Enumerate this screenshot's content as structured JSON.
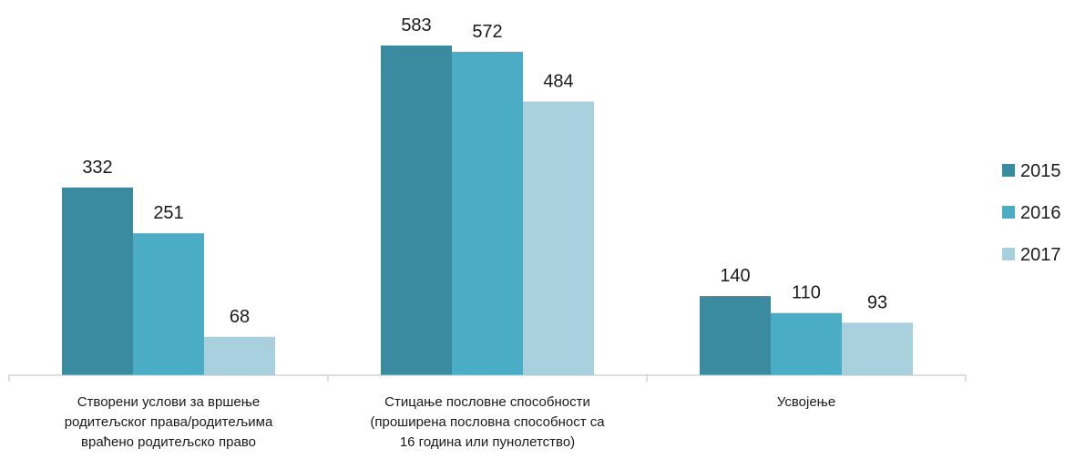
{
  "chart_data": {
    "type": "bar",
    "categories": [
      [
        "Створени услови за вршење",
        "родитељског права/родитељима",
        "враћено родитељско право"
      ],
      [
        "Стицање пословне способности",
        "(проширена пословна способност са",
        "16 година или пунолетство)"
      ],
      [
        "Усвојење"
      ]
    ],
    "series": [
      {
        "name": "2015",
        "color": "#3a8b9f",
        "values": [
          332,
          583,
          140
        ]
      },
      {
        "name": "2016",
        "color": "#4bacc6",
        "values": [
          251,
          572,
          110
        ]
      },
      {
        "name": "2017",
        "color": "#a9d0dd",
        "values": [
          68,
          484,
          93
        ]
      }
    ],
    "ylim": [
      0,
      583
    ],
    "grid": false,
    "legend": "right",
    "title": "",
    "xlabel": "",
    "ylabel": ""
  }
}
